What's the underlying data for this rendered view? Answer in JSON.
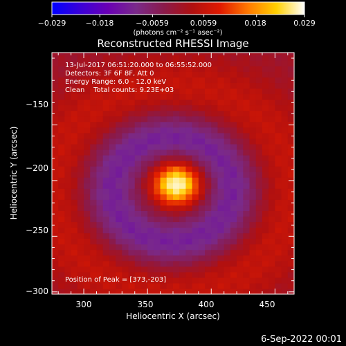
{
  "chart_data": {
    "type": "heatmap",
    "title": "Reconstructed RHESSI Image",
    "xlabel": "Heliocentric X (arcsec)",
    "ylabel": "Heliocentric Y (arcsec)",
    "xlim": [
      275,
      465
    ],
    "ylim": [
      -302,
      -85
    ],
    "x_ticks": [
      300,
      350,
      400,
      450
    ],
    "y_ticks": [
      -150,
      -200,
      -250,
      -300
    ],
    "x_tick_labels": [
      "300",
      "350",
      "400",
      "450"
    ],
    "y_tick_labels": [
      "−150",
      "−200",
      "−250",
      "−300"
    ],
    "colorbar": {
      "range": [
        -0.029,
        0.029
      ],
      "tick_values": [
        -0.029,
        -0.018,
        -0.0059,
        0.0059,
        0.018,
        0.029
      ],
      "tick_labels": [
        "−0.029",
        "−0.018",
        "−0.0059",
        "0.0059",
        "0.018",
        "0.029"
      ],
      "unit_label": "(photons cm⁻² s⁻¹ asec⁻²)",
      "colors": [
        "#0000ff",
        "#3a00d8",
        "#6a00b4",
        "#7a2a8a",
        "#8a1a4a",
        "#b01010",
        "#e01a00",
        "#ff7a00",
        "#ffd000",
        "#ffffff"
      ]
    },
    "annotations": [
      "13-Jul-2017 06:51:20.000 to 06:55:52.000",
      "Detectors: 3F 6F 8F, Att 0",
      "Energy Range: 6.0 - 12.0 keV",
      "Clean    Total counts: 9.23E+03"
    ],
    "peak_label": "Position of Peak = [373,-203]",
    "peak": {
      "x": 373,
      "y": -203,
      "value": 0.029
    },
    "ring_inner": {
      "center_x": 369,
      "center_y": -208,
      "radius": 48,
      "value": -0.012
    },
    "ring_outer": {
      "center_x": 369,
      "center_y": -208,
      "radius": 92,
      "value": 0.006
    }
  },
  "footer": {
    "date": "6-Sep-2022 00:01"
  }
}
